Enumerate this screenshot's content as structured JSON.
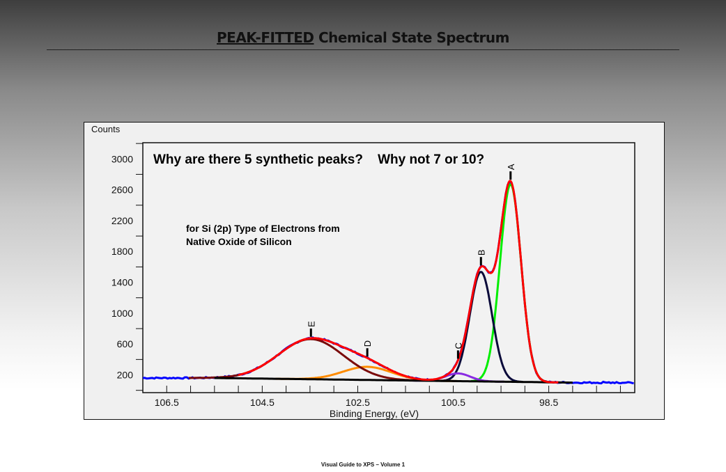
{
  "header": {
    "title_underlined": "PEAK-FITTED",
    "title_rest": " Chemical State Spectrum"
  },
  "footer": "Visual Guide to XPS – Volume 1",
  "chart_data": {
    "type": "line",
    "title": "",
    "xlabel": "Binding Energy, (eV)",
    "ylabel": "Counts",
    "xlim": [
      107.0,
      96.7
    ],
    "ylim": [
      -30,
      3210
    ],
    "x_reversed": true,
    "xticks": [
      106.5,
      104.5,
      102.5,
      100.5,
      98.5
    ],
    "xtick_labels": [
      "106.5",
      "104.5",
      "102.5",
      "100.5",
      "98.5"
    ],
    "yticks": [
      200,
      600,
      1000,
      1400,
      1800,
      2200,
      2600,
      3000
    ],
    "ytick_labels": [
      "200",
      "600",
      "1000",
      "1400",
      "1800",
      "2200",
      "2600",
      "3000"
    ],
    "annotations": {
      "question": "Why are there 5 synthetic peaks?    Why not 7 or 10?",
      "note_line1": "for Si (2p) Type of Electrons from",
      "note_line2": "Native Oxide of Silicon"
    },
    "background": {
      "x_start": 105.5,
      "x_end": 98.0,
      "y_start": 160,
      "y_end": 100
    },
    "raw_data_range": [
      107.0,
      96.7
    ],
    "peaks": [
      {
        "label": "A",
        "center": 99.3,
        "height": 2560,
        "fwhm": 0.52,
        "color": "#00ee00"
      },
      {
        "label": "B",
        "center": 99.92,
        "height": 1420,
        "fwhm": 0.55,
        "color": "#0a0a3a"
      },
      {
        "label": "C",
        "center": 100.4,
        "height": 100,
        "fwhm": 0.6,
        "color": "#8a2be2"
      },
      {
        "label": "D",
        "center": 102.3,
        "height": 170,
        "fwhm": 1.2,
        "color": "#ff8c00"
      },
      {
        "label": "E",
        "center": 103.48,
        "height": 520,
        "fwhm": 1.6,
        "color": "#7a0a0a"
      }
    ],
    "series_colors": {
      "raw": "#0000ff",
      "envelope": "#ff0000",
      "background": "#000000"
    }
  }
}
